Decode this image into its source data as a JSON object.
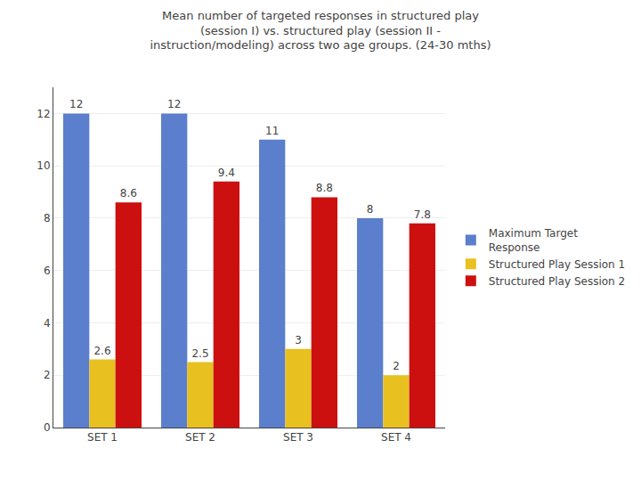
{
  "chart_data": {
    "type": "bar",
    "title": "Mean number of targeted responses in structured play\n(session I) vs. structured play (session II -\ninstruction/modeling) across two age groups. (24-30 mths)",
    "categories": [
      "SET 1",
      "SET 2",
      "SET 3",
      "SET 4"
    ],
    "series": [
      {
        "name": "Maximum Target\nResponse",
        "color": "#5B7FCC",
        "values": [
          12,
          12,
          11,
          8
        ]
      },
      {
        "name": "Structured Play Session 1",
        "color": "#E8C020",
        "values": [
          2.6,
          2.5,
          3,
          2
        ]
      },
      {
        "name": "Structured Play Session 2",
        "color": "#CC1010",
        "values": [
          8.6,
          9.4,
          8.8,
          7.8
        ]
      }
    ],
    "ylim": [
      0,
      13
    ],
    "yticks": [
      0,
      2,
      4,
      6,
      8,
      10,
      12
    ],
    "grid": true,
    "data_labels": true,
    "legend": "right"
  }
}
